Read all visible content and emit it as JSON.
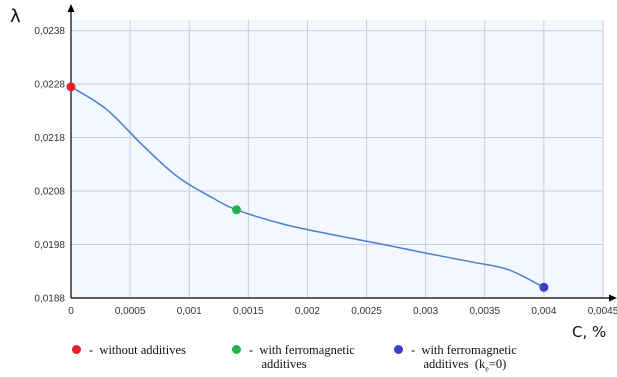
{
  "chart_data": {
    "type": "line",
    "title": "",
    "xlabel": "C, %",
    "ylabel": "λ",
    "xlim": [
      0,
      0.0045
    ],
    "ylim": [
      0.0188,
      0.024
    ],
    "x_ticks": [
      0,
      0.0005,
      0.001,
      0.0015,
      0.002,
      0.0025,
      0.003,
      0.0035,
      0.004,
      0.0045
    ],
    "x_tick_labels": [
      "0",
      "0,0005",
      "0,001",
      "0,0015",
      "0,002",
      "0,0025",
      "0,003",
      "0,0035",
      "0,004",
      "0,0045"
    ],
    "y_ticks": [
      0.0188,
      0.0198,
      0.0208,
      0.0218,
      0.0228,
      0.0238
    ],
    "y_tick_labels": [
      "0,0188",
      "0,0198",
      "0,0208",
      "0,0218",
      "0,0228",
      "0,0238"
    ],
    "grid": true,
    "line_color": "#4a7fd0",
    "series": [
      {
        "x": [
          0,
          0.0003,
          0.0006,
          0.0009,
          0.0012,
          0.0014,
          0.0018,
          0.0022,
          0.0026,
          0.003,
          0.0034,
          0.0037,
          0.004
        ],
        "y": [
          0.02275,
          0.02233,
          0.02167,
          0.02107,
          0.02067,
          0.02045,
          0.02018,
          0.01999,
          0.01982,
          0.01964,
          0.01947,
          0.01933,
          0.019
        ]
      }
    ],
    "points": [
      {
        "x": 0,
        "y": 0.02275,
        "color": "#e8202a",
        "label": "without additives"
      },
      {
        "x": 0.0014,
        "y": 0.02045,
        "color": "#22b14c",
        "label": "with ferromagnetic\nadditives"
      },
      {
        "x": 0.004,
        "y": 0.019,
        "color": "#3a3fc8",
        "label": "with ferromagnetic\nadditives  (k"
      }
    ],
    "legend": [
      {
        "color": "#e8202a",
        "text": "-  without additives"
      },
      {
        "color": "#22b14c",
        "text": "-  with ferromagnetic\n    additives"
      },
      {
        "color": "#3a3fc8",
        "text": "-  with ferromagnetic\n    additives  (k",
        "sub": "e",
        "tail": "=0)"
      }
    ]
  }
}
